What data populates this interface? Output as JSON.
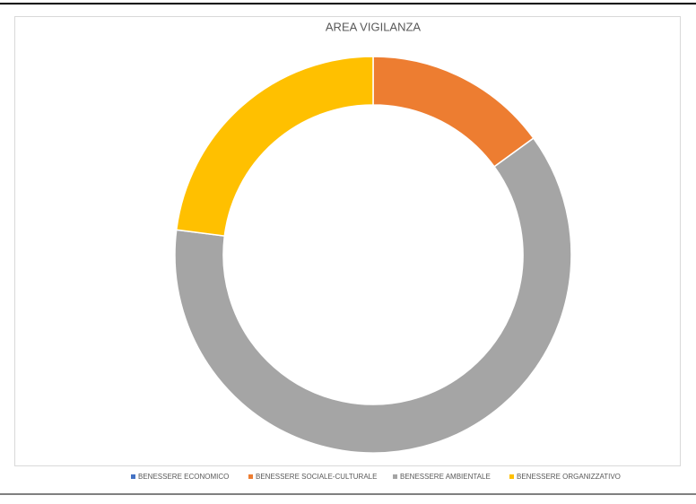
{
  "chart_data": {
    "type": "donut",
    "title": "AREA VIGILANZA",
    "categories": [
      "BENESSERE ECONOMICO",
      "BENESSERE SOCIALE-CULTURALE",
      "BENESSERE AMBIENTALE",
      "BENESSERE ORGANIZZATIVO"
    ],
    "values": [
      0,
      15,
      62,
      23
    ],
    "colors": [
      "#4472c4",
      "#ed7d31",
      "#a5a5a5",
      "#ffc000"
    ],
    "legend": "bottom"
  }
}
